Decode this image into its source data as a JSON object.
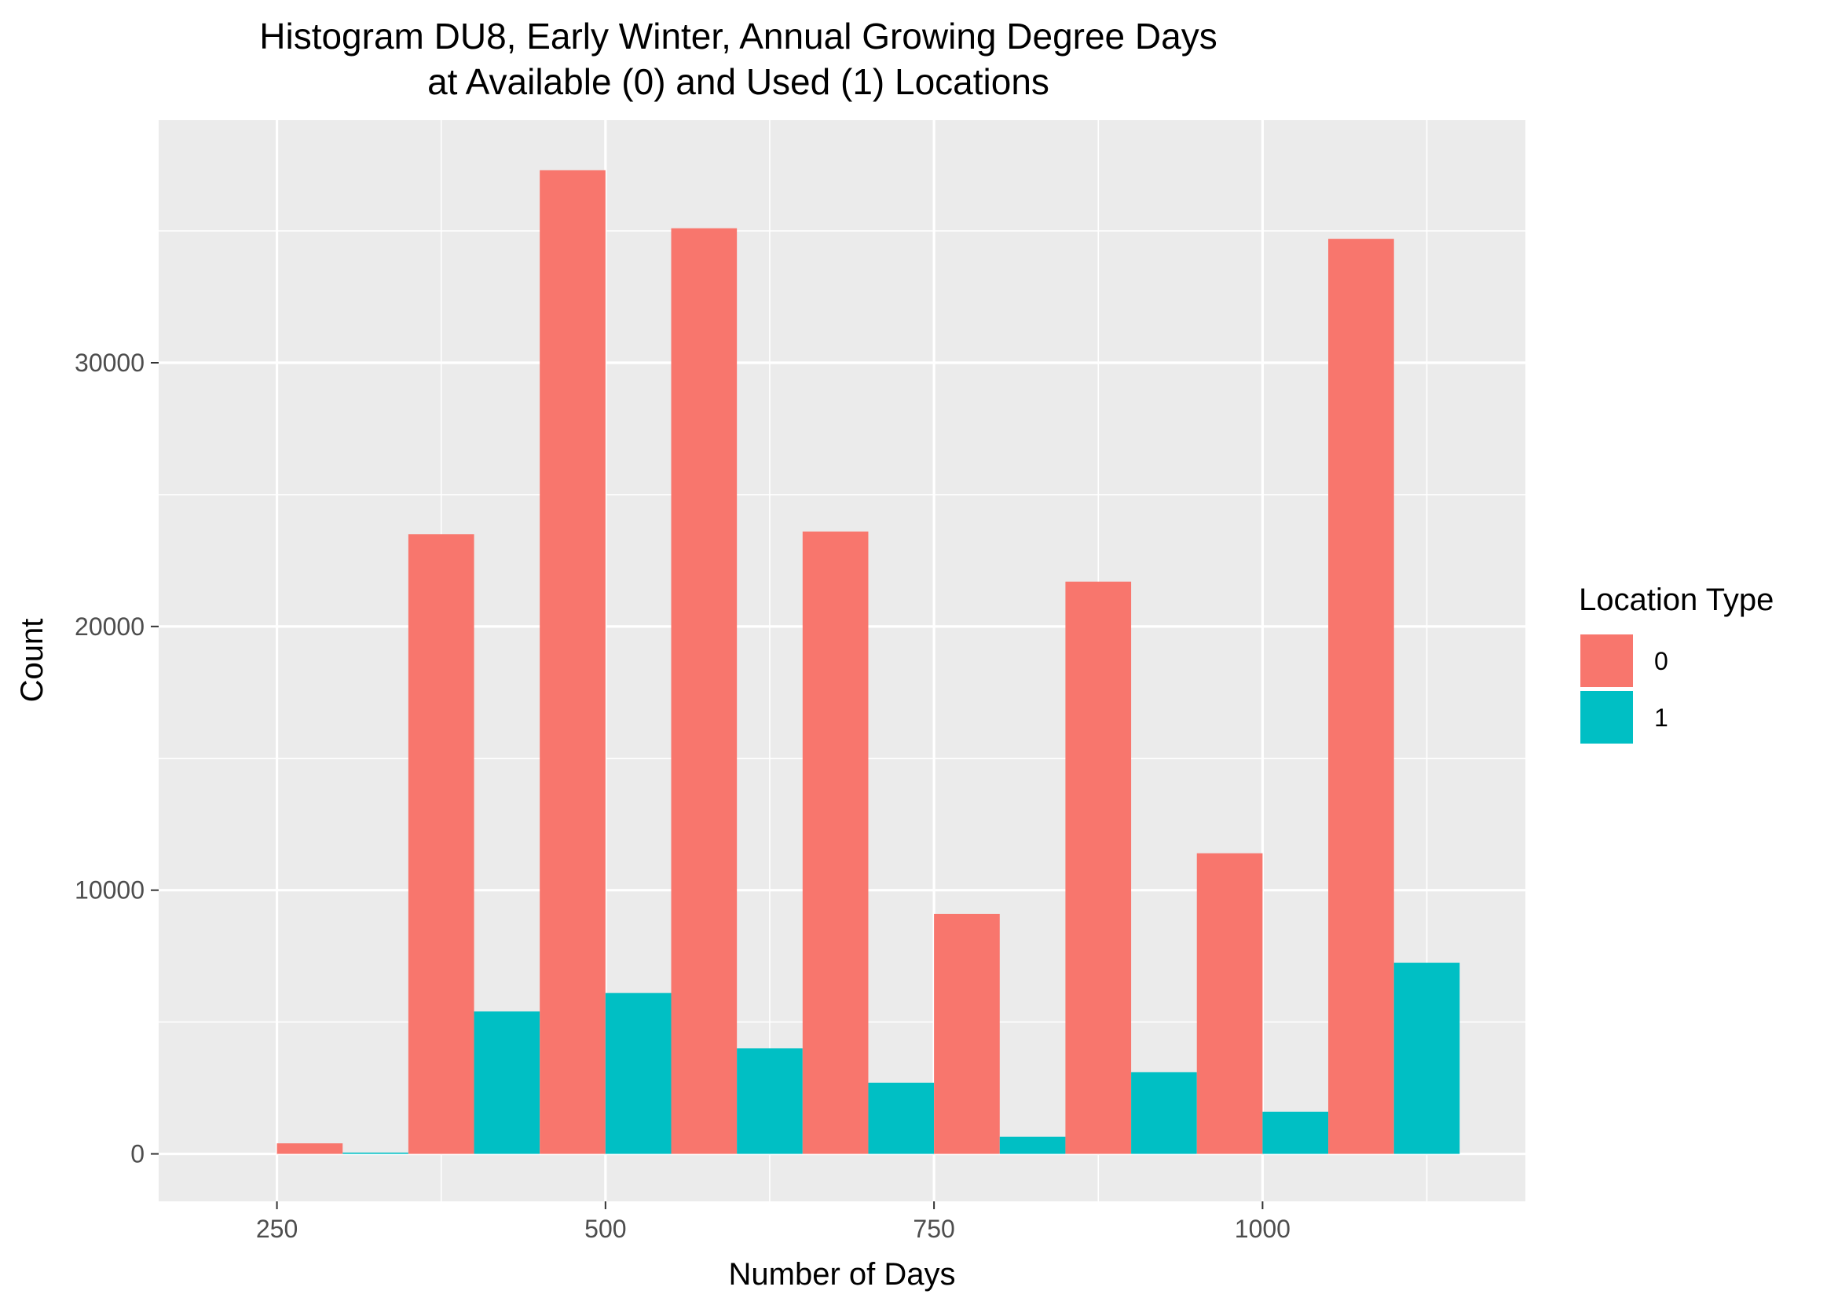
{
  "chart_data": {
    "type": "bar",
    "title_line1": "Histogram DU8, Early Winter, Annual Growing Degree Days",
    "title_line2": "at Available (0) and Used (1) Locations",
    "xlabel": "Number of Days",
    "ylabel": "Count",
    "xlim": [
      160,
      1200
    ],
    "ylim": [
      -1800,
      39200
    ],
    "x_ticks": [
      250,
      500,
      750,
      1000
    ],
    "x_tick_labels": [
      "250",
      "500",
      "750",
      "1000"
    ],
    "x_minor_ticks": [
      375,
      625,
      875,
      1125
    ],
    "y_ticks": [
      0,
      10000,
      20000,
      30000
    ],
    "y_tick_labels": [
      "0",
      "10000",
      "20000",
      "30000"
    ],
    "y_minor_ticks": [
      5000,
      15000,
      25000,
      35000
    ],
    "bin_width": 100,
    "bin_centers": [
      300,
      400,
      500,
      600,
      700,
      800,
      900,
      1000,
      1100
    ],
    "series": [
      {
        "name": "0",
        "color": "#F8766D",
        "values": [
          400,
          23500,
          37300,
          35100,
          23600,
          9100,
          21700,
          11400,
          34700
        ]
      },
      {
        "name": "1",
        "color": "#00BFC4",
        "values": [
          50,
          5400,
          6100,
          4000,
          2700,
          650,
          3100,
          1600,
          7250
        ]
      }
    ],
    "legend": {
      "title": "Location Type",
      "position": "right"
    },
    "grid": true,
    "panel_background": "#EBEBEB",
    "grid_color": "#FFFFFF"
  }
}
